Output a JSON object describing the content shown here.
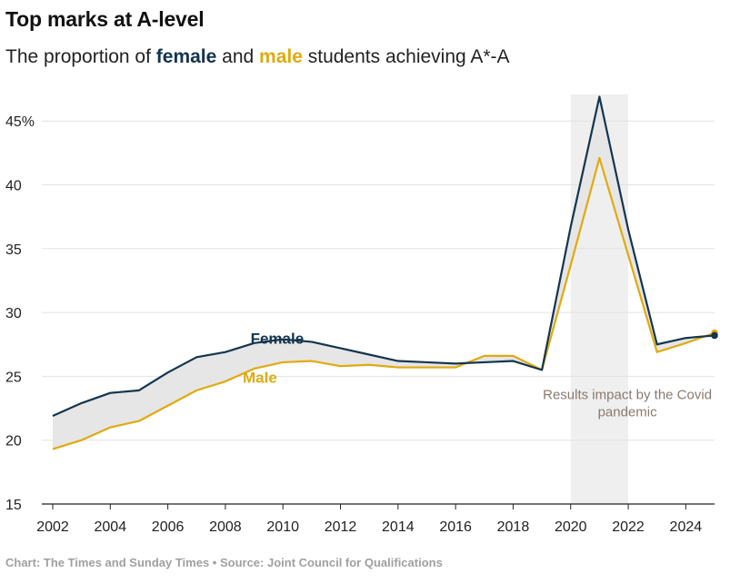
{
  "header": {
    "title": "Top marks at A-level",
    "subtitle_pre": "The proportion of ",
    "subtitle_female": "female",
    "subtitle_and": " and ",
    "subtitle_male": "male",
    "subtitle_post": " students achieving A*-A"
  },
  "footer": {
    "source": "Chart: The Times and Sunday Times • Source: Joint Council for Qualifications"
  },
  "colors": {
    "female": "#13354f",
    "male": "#e0aa0f",
    "fill": "#e6e6e6",
    "shade": "#efefef",
    "grid": "#e2e2e2",
    "axis": "#222222",
    "annotation": "#8a7a6e"
  },
  "chart_data": {
    "type": "line",
    "title": "Top marks at A-level",
    "subtitle": "The proportion of female and male students achieving A*-A",
    "x": [
      2002,
      2003,
      2004,
      2005,
      2006,
      2007,
      2008,
      2009,
      2010,
      2011,
      2012,
      2013,
      2014,
      2015,
      2016,
      2017,
      2018,
      2019,
      2020,
      2021,
      2022,
      2023,
      2024,
      2025
    ],
    "series": [
      {
        "name": "Female",
        "values": [
          21.9,
          22.9,
          23.7,
          23.9,
          25.3,
          26.5,
          26.9,
          27.6,
          27.9,
          27.7,
          27.2,
          26.7,
          26.2,
          26.1,
          26.0,
          26.1,
          26.2,
          25.5,
          36.7,
          46.9,
          36.5,
          27.5,
          28.0,
          28.2
        ]
      },
      {
        "name": "Male",
        "values": [
          19.3,
          20.0,
          21.0,
          21.5,
          22.7,
          23.9,
          24.6,
          25.6,
          26.1,
          26.2,
          25.8,
          25.9,
          25.7,
          25.7,
          25.7,
          26.6,
          26.6,
          25.5,
          33.7,
          42.1,
          34.5,
          26.9,
          27.6,
          28.4
        ]
      }
    ],
    "xlim": [
      2002,
      2025
    ],
    "ylim": [
      15,
      47
    ],
    "yticks": [
      15,
      20,
      25,
      30,
      35,
      40,
      45
    ],
    "ytick_labels": [
      "15",
      "20",
      "25",
      "30",
      "35",
      "40",
      "45%"
    ],
    "xticks": [
      2002,
      2004,
      2006,
      2008,
      2010,
      2012,
      2014,
      2016,
      2018,
      2020,
      2022,
      2024
    ],
    "xtick_labels": [
      "2002",
      "2004",
      "2006",
      "2008",
      "2010",
      "2012",
      "2014",
      "2016",
      "2018",
      "2020",
      "2022",
      "2024"
    ],
    "series_labels": [
      {
        "text": "Female",
        "x": 2009.8,
        "y": 27.55
      },
      {
        "text": "Male",
        "x": 2009.2,
        "y": 24.5
      }
    ],
    "shaded_period": {
      "from": 2020,
      "to": 2022,
      "label_line1": "Results impact by the Covid",
      "label_line2": "pandemic",
      "label_x": 2021.97,
      "label_y": 23.2
    },
    "grid": true,
    "legend": "inline labels"
  }
}
